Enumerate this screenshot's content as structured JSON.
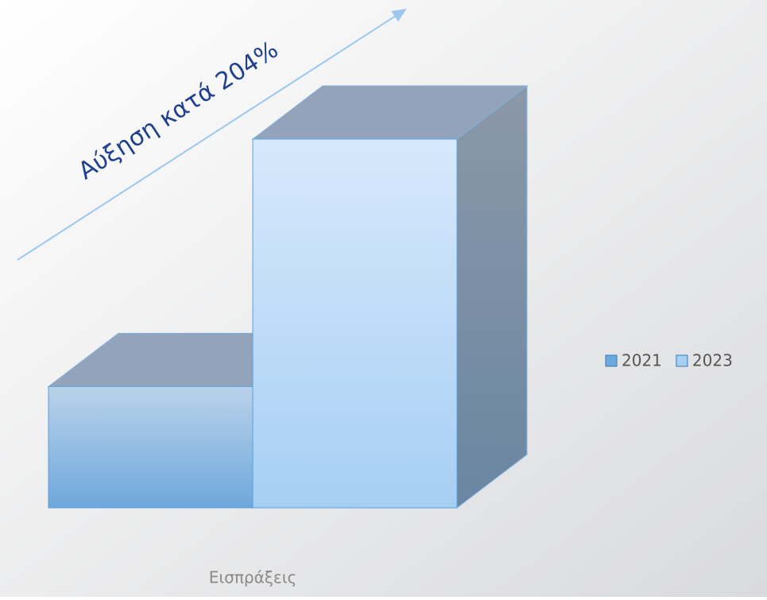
{
  "chart_data": {
    "type": "bar3d",
    "categories": [
      "Εισπράξεις"
    ],
    "series": [
      {
        "name": "2021",
        "color": "#6fa8dc",
        "values": [
          100
        ]
      },
      {
        "name": "2023",
        "color": "#a6cff4",
        "values": [
          304
        ]
      }
    ],
    "ylim": [
      0,
      304
    ],
    "annotation": "Αύξηση κατά 204%",
    "legend": "right"
  }
}
